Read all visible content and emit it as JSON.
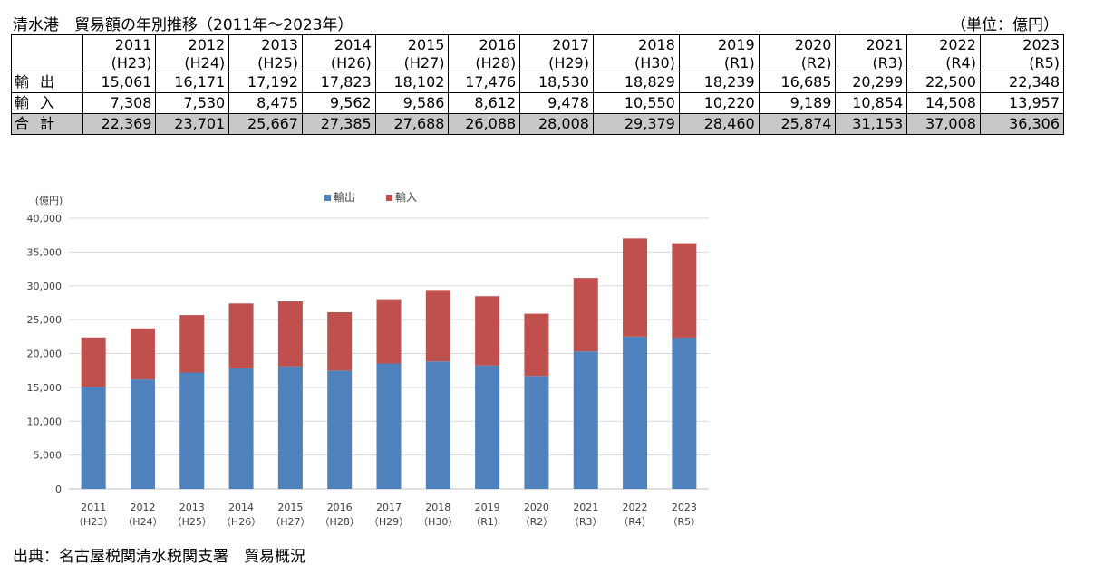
{
  "title": "清水港　貿易額の年別推移（2011年～2023年）",
  "unit": "（単位：億円）",
  "table": {
    "columns": [
      {
        "year": "2011",
        "era": "(H23)"
      },
      {
        "year": "2012",
        "era": "(H24)"
      },
      {
        "year": "2013",
        "era": "(H25)"
      },
      {
        "year": "2014",
        "era": "(H26)"
      },
      {
        "year": "2015",
        "era": "(H27)"
      },
      {
        "year": "2016",
        "era": "(H28)"
      },
      {
        "year": "2017",
        "era": "(H29)"
      },
      {
        "year": "2018",
        "era": "(H30)"
      },
      {
        "year": "2019",
        "era": "(R1)"
      },
      {
        "year": "2020",
        "era": "(R2)"
      },
      {
        "year": "2021",
        "era": "(R3)"
      },
      {
        "year": "2022",
        "era": "(R4)"
      },
      {
        "year": "2023",
        "era": "(R5)"
      }
    ],
    "rows": [
      {
        "label": "輸出",
        "values": [
          "15,061",
          "16,171",
          "17,192",
          "17,823",
          "18,102",
          "17,476",
          "18,530",
          "18,829",
          "18,239",
          "16,685",
          "20,299",
          "22,500",
          "22,348"
        ]
      },
      {
        "label": "輸入",
        "values": [
          "7,308",
          "7,530",
          "8,475",
          "9,562",
          "9,586",
          "8,612",
          "9,478",
          "10,550",
          "10,220",
          "9,189",
          "10,854",
          "14,508",
          "13,957"
        ]
      },
      {
        "label": "合計",
        "values": [
          "22,369",
          "23,701",
          "25,667",
          "27,385",
          "27,688",
          "26,088",
          "28,008",
          "29,379",
          "28,460",
          "25,874",
          "31,153",
          "37,008",
          "36,306"
        ]
      }
    ]
  },
  "chart_data": {
    "type": "bar",
    "stacked": true,
    "ylabel": "(億円)",
    "ylim": [
      0,
      40000
    ],
    "yticks": [
      0,
      5000,
      10000,
      15000,
      20000,
      25000,
      30000,
      35000,
      40000
    ],
    "ytick_labels": [
      "0",
      "5,000",
      "10,000",
      "15,000",
      "20,000",
      "25,000",
      "30,000",
      "35,000",
      "40,000"
    ],
    "categories": [
      "2011",
      "2012",
      "2013",
      "2014",
      "2015",
      "2016",
      "2017",
      "2018",
      "2019",
      "2020",
      "2021",
      "2022",
      "2023"
    ],
    "category_sub": [
      "（H23）",
      "（H24）",
      "（H25）",
      "（H26）",
      "（H27）",
      "（H28）",
      "（H29）",
      "（H30）",
      "（R1）",
      "（R2）",
      "（R3）",
      "（R4）",
      "（R5）"
    ],
    "legend_position": "top",
    "grid": true,
    "series": [
      {
        "name": "輸出",
        "color": "#4f81bd",
        "values": [
          15061,
          16171,
          17192,
          17823,
          18102,
          17476,
          18530,
          18829,
          18239,
          16685,
          20299,
          22500,
          22348
        ]
      },
      {
        "name": "輸入",
        "color": "#c0504d",
        "values": [
          7308,
          7530,
          8475,
          9562,
          9586,
          8612,
          9478,
          10550,
          10220,
          9189,
          10854,
          14508,
          13957
        ]
      }
    ]
  },
  "source": "出典：名古屋税関清水税関支署　貿易概況"
}
